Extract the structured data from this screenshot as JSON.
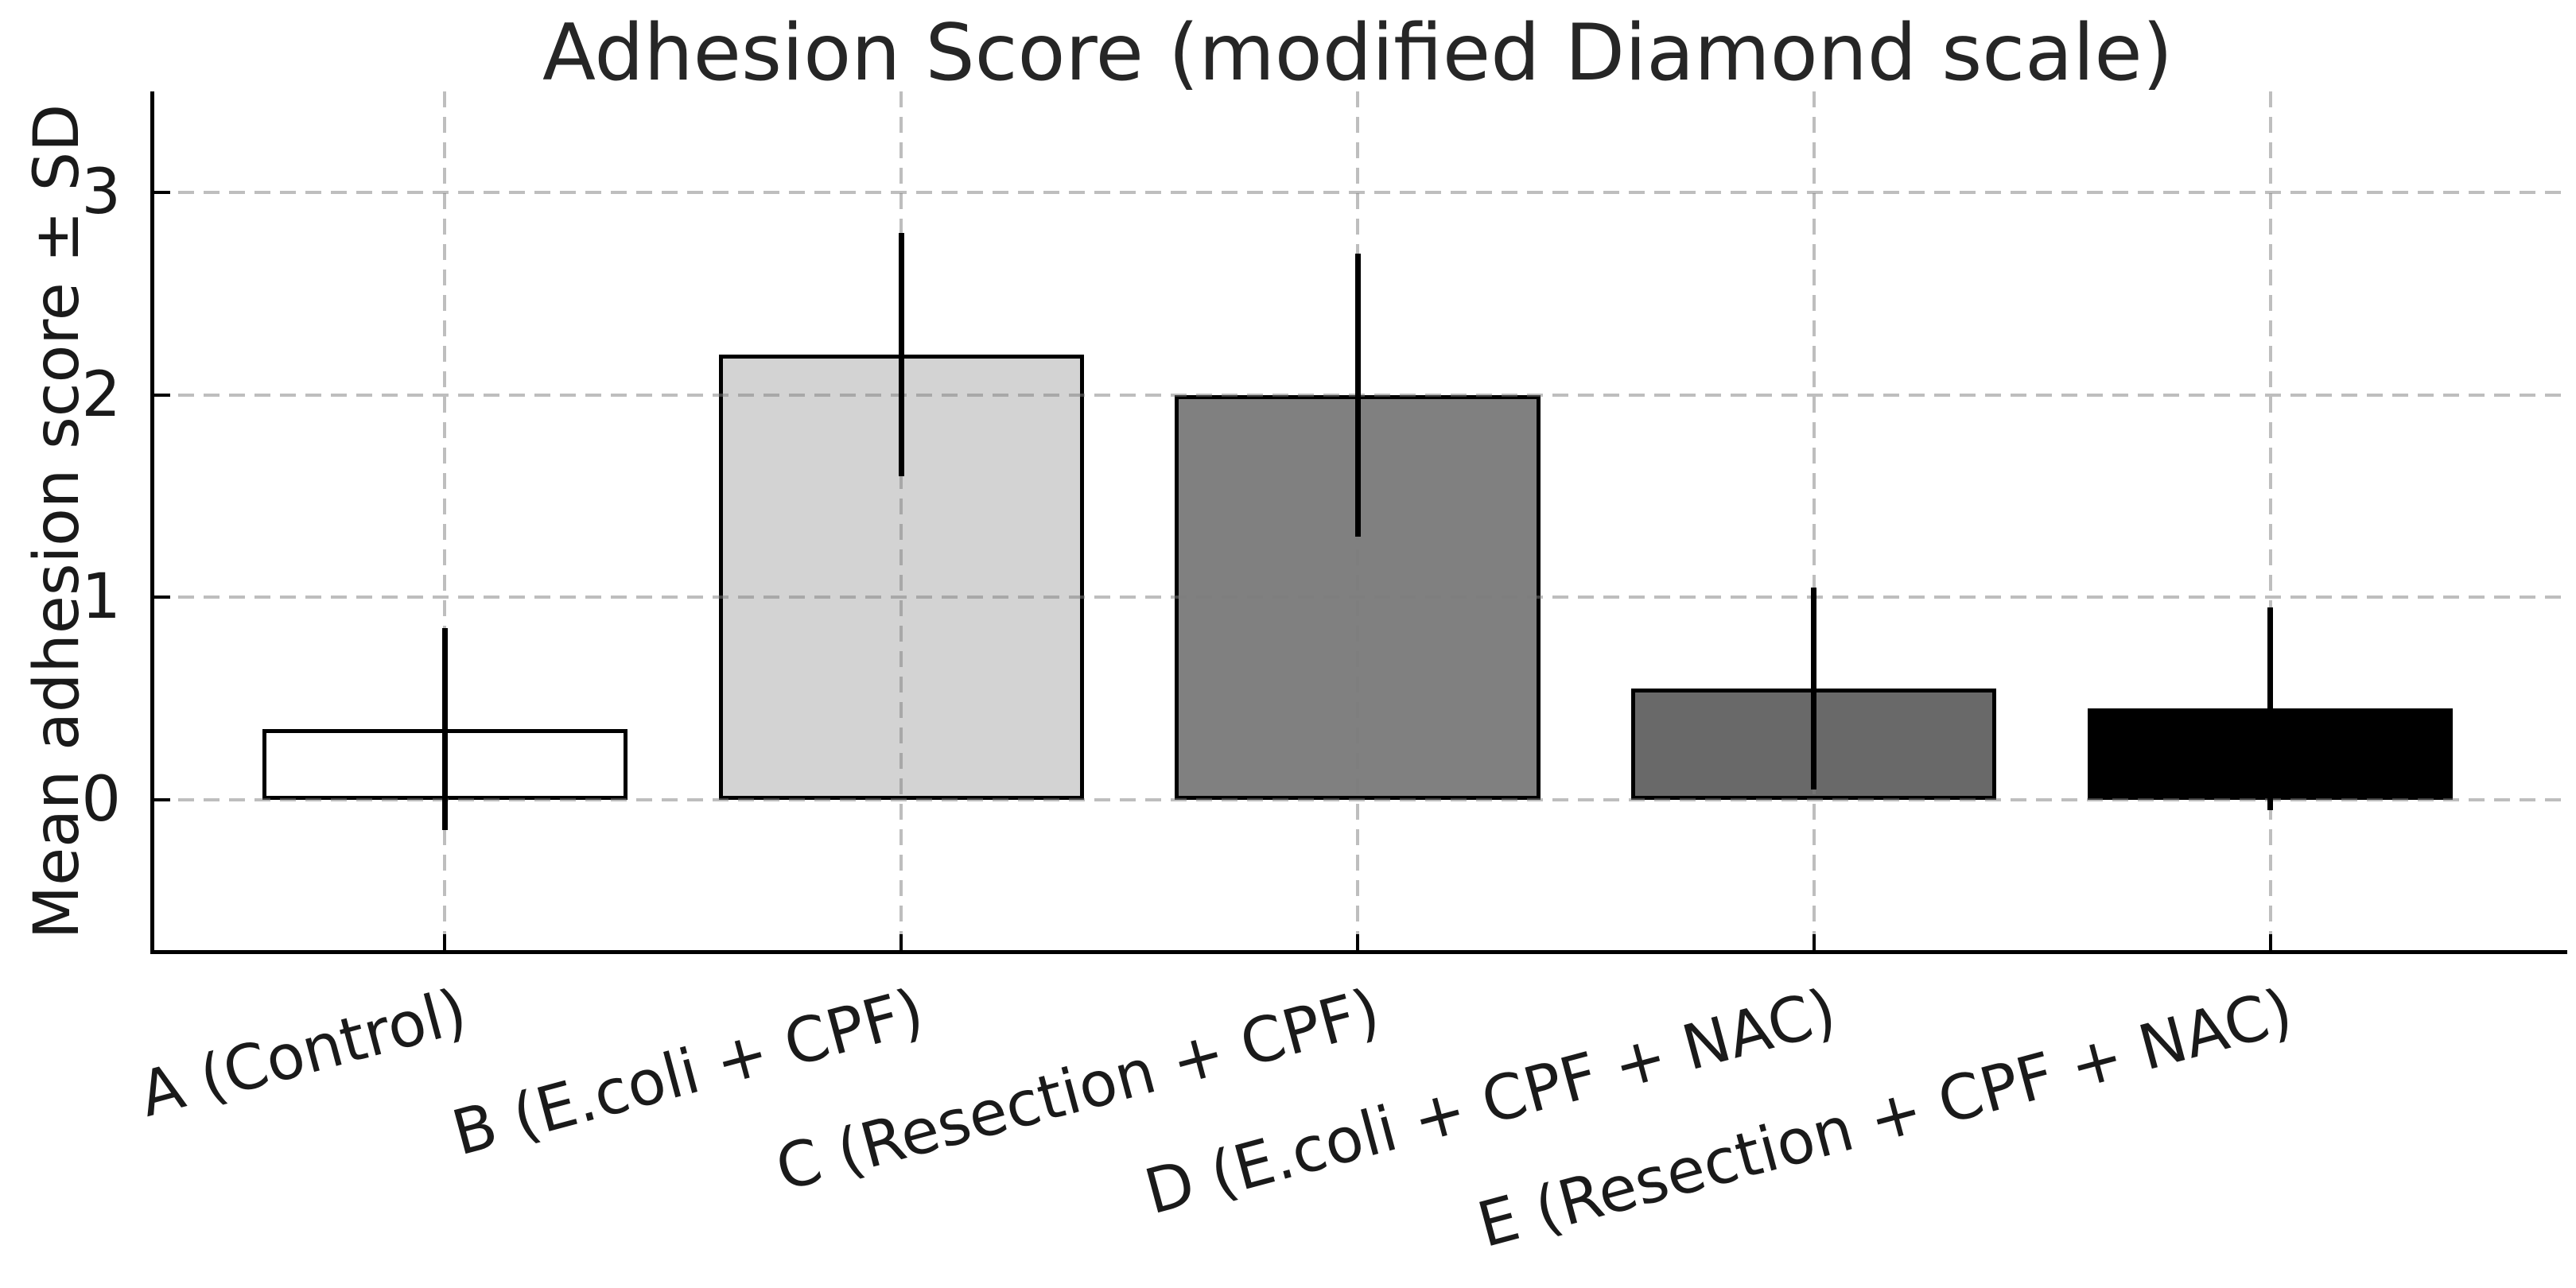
{
  "chart_data": {
    "type": "bar",
    "title": "Adhesion Score (modified Diamond scale)",
    "ylabel": "Mean adhesion score ± SD",
    "xlabel": "",
    "categories": [
      "A (Control)",
      "B (E.coli + CPF)",
      "C (Resection + CPF)",
      "D (E.coli + CPF + NAC)",
      "E (Resection + CPF + NAC)"
    ],
    "values": [
      0.35,
      2.2,
      2.0,
      0.55,
      0.45
    ],
    "errors_sd": [
      0.5,
      0.6,
      0.7,
      0.5,
      0.5
    ],
    "error_low": [
      -0.15,
      1.6,
      1.3,
      0.05,
      -0.05
    ],
    "error_high": [
      0.85,
      2.8,
      2.7,
      1.05,
      0.95
    ],
    "bar_colors": [
      "#ffffff",
      "#d3d3d3",
      "#808080",
      "#696969",
      "#000000"
    ],
    "bar_edge_color": "#000000",
    "error_bar_color": "#000000",
    "yticks": [
      0,
      1,
      2,
      3
    ],
    "ytick_labels": [
      "0",
      "1",
      "2",
      "3"
    ],
    "ylim": [
      -0.75,
      3.5
    ],
    "xlim": [
      -0.64,
      4.64
    ],
    "bar_width": 0.8,
    "grid": "dashed",
    "gridline_color": "#bdbdbd",
    "spines": [
      "left",
      "bottom"
    ],
    "tick_direction": "in",
    "xtick_rotation_deg": 15,
    "legend": "none"
  }
}
